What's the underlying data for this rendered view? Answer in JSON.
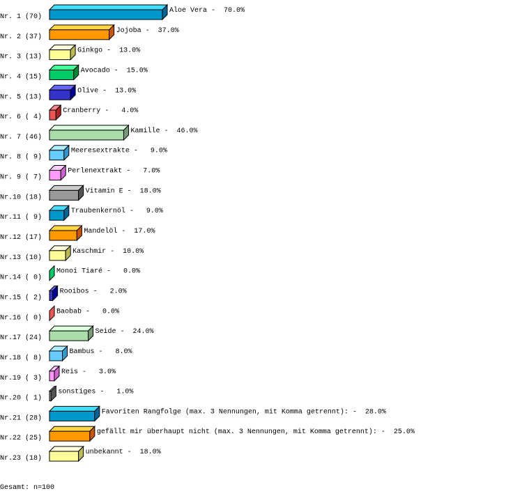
{
  "chart_data": {
    "type": "bar",
    "orientation": "horizontal",
    "style": "3d",
    "grid": false,
    "xlim": [
      0,
      100
    ],
    "rank_labels": [
      "Nr. 1 (70)",
      "Nr. 2 (37)",
      "Nr. 3 (13)",
      "Nr. 4 (15)",
      "Nr. 5 (13)",
      "Nr. 6 ( 4)",
      "Nr. 7 (46)",
      "Nr. 8 ( 9)",
      "Nr. 9 ( 7)",
      "Nr.10 (18)",
      "Nr.11 ( 9)",
      "Nr.12 (17)",
      "Nr.13 (10)",
      "Nr.14 ( 0)",
      "Nr.15 ( 2)",
      "Nr.16 ( 0)",
      "Nr.17 (24)",
      "Nr.18 ( 8)",
      "Nr.19 ( 3)",
      "Nr.20 ( 1)",
      "Nr.21 (28)",
      "Nr.22 (25)",
      "Nr.23 (18)"
    ],
    "categories": [
      "Aloe Vera",
      "Jojoba",
      "Ginkgo",
      "Avocado",
      "Olive",
      "Cranberry",
      "Kamille",
      "Meeresextrakte",
      "Perlenextrakt",
      "Vitamin E",
      "Traubenkernöl",
      "Mandelöl",
      "Kaschmir",
      "Monoi Tiaré",
      "Rooibos",
      "Baobab",
      "Seide",
      "Bambus",
      "Reis",
      "sonstiges",
      "Favoriten Rangfolge (max. 3 Nennungen, mit Komma getrennt):",
      "gefällt mir überhaupt nicht (max. 3 Nennungen, mit Komma getrennt):",
      "unbekannt"
    ],
    "counts": [
      70,
      37,
      13,
      15,
      13,
      4,
      46,
      9,
      7,
      18,
      9,
      17,
      10,
      0,
      2,
      0,
      24,
      8,
      3,
      1,
      28,
      25,
      18
    ],
    "values": [
      70.0,
      37.0,
      13.0,
      15.0,
      13.0,
      4.0,
      46.0,
      9.0,
      7.0,
      18.0,
      9.0,
      17.0,
      10.0,
      0.0,
      2.0,
      0.0,
      24.0,
      8.0,
      3.0,
      1.0,
      28.0,
      25.0,
      18.0
    ],
    "value_labels": [
      "Aloe Vera -  70.0%",
      "Jojoba -  37.0%",
      "Ginkgo -  13.0%",
      "Avocado -  15.0%",
      "Olive -  13.0%",
      "Cranberry -   4.0%",
      "Kamille -  46.0%",
      "Meeresextrakte -   9.0%",
      "Perlenextrakt -   7.0%",
      "Vitamin E -  18.0%",
      "Traubenkernöl -   9.0%",
      "Mandelöl -  17.0%",
      "Kaschmir -  10.0%",
      "Monoi Tiaré -   0.0%",
      "Rooibos -   2.0%",
      "Baobab -   0.0%",
      "Seide -  24.0%",
      "Bambus -   8.0%",
      "Reis -   3.0%",
      "sonstiges -   1.0%",
      "Favoriten Rangfolge (max. 3 Nennungen, mit Komma getrennt): -  28.0%",
      "gefällt mir überhaupt nicht (max. 3 Nennungen, mit Komma getrennt): -  25.0%",
      "unbekannt -  18.0%"
    ],
    "palette": [
      {
        "front": "#0099cc",
        "top": "#44ddff",
        "side": "#006699"
      },
      {
        "front": "#ff9900",
        "top": "#ffd744",
        "side": "#cc5500"
      },
      {
        "front": "#ffff99",
        "top": "#ffffdd",
        "side": "#bbbb55"
      },
      {
        "front": "#00cc66",
        "top": "#44ff99",
        "side": "#008833"
      },
      {
        "front": "#3333cc",
        "top": "#6666ff",
        "side": "#000099"
      },
      {
        "front": "#ee5555",
        "top": "#ff8888",
        "side": "#aa2222"
      },
      {
        "front": "#aaddaa",
        "top": "#ddffdd",
        "side": "#779977"
      },
      {
        "front": "#66ccff",
        "top": "#aaeeff",
        "side": "#3399cc"
      },
      {
        "front": "#ff99ff",
        "top": "#ffccff",
        "side": "#cc66cc"
      },
      {
        "front": "#999999",
        "top": "#cccccc",
        "side": "#555555"
      }
    ],
    "footer": "Gesamt: n=100"
  }
}
